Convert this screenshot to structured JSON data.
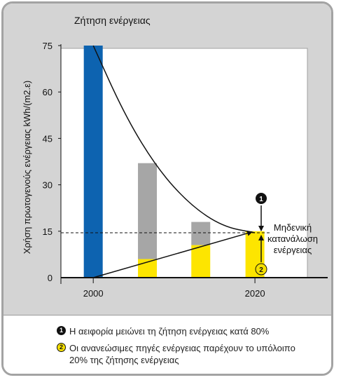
{
  "colors": {
    "panel": "#d4d4d4",
    "plot": "#ffffff",
    "blue": "#0d63b0",
    "gray": "#a6a6a6",
    "yellow": "#fde500",
    "axis": "#111111"
  },
  "chart_data": {
    "type": "bar",
    "title": "Ζήτηση ενέργειας",
    "ylabel": "Χρήση πρωτογενούς ενέργειας kWh/(m2.ε)",
    "xlabel": "",
    "ylim": [
      0,
      75
    ],
    "xlim": [
      1996,
      2029
    ],
    "yticks": [
      0,
      15,
      30,
      45,
      60,
      75
    ],
    "xticks": [
      2000,
      2020
    ],
    "bars": [
      {
        "x": 2000,
        "total": 75,
        "renewable": 0,
        "color": "blue"
      },
      {
        "x": 2006.7,
        "total": 37,
        "renewable": 6,
        "color": "gray"
      },
      {
        "x": 2013.3,
        "total": 18,
        "renewable": 10.5,
        "color": "gray"
      },
      {
        "x": 2020,
        "total": 15,
        "renewable": 15,
        "color": "yellow"
      }
    ],
    "demand_curve": [
      [
        2000,
        75
      ],
      [
        2004,
        52
      ],
      [
        2008,
        35
      ],
      [
        2012,
        23.5
      ],
      [
        2016,
        16.5
      ],
      [
        2020,
        14.5
      ]
    ],
    "renewable_line": [
      [
        2000,
        0
      ],
      [
        2020,
        15
      ]
    ],
    "target_line": 14.5,
    "annotation": {
      "lines": [
        "Μηδενική",
        "κατανάλωση",
        "ενέργειας"
      ],
      "marker1": "1",
      "marker2": "2"
    }
  },
  "legend": {
    "item1": {
      "badge": "1",
      "text": "Η αειφορία μειώνει τη ζήτηση ενέργειας κατά 80%"
    },
    "item2": {
      "badge": "2",
      "line1": "Οι ανανεώσιμες πηγές ενέργειας παρέχουν το υπόλοιπο",
      "line2": "20% της ζήτησης ενέργειας"
    }
  }
}
